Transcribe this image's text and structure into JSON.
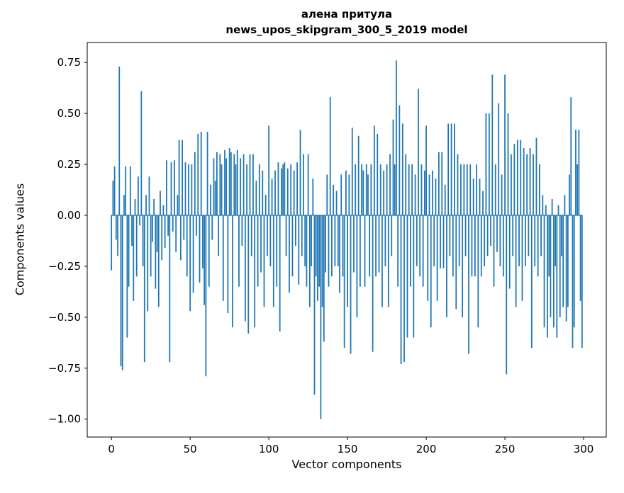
{
  "figure": {
    "background": "#ffffff"
  },
  "chart_data": {
    "type": "bar",
    "title": "алена притула",
    "subtitle": "news_upos_skipgram_300_5_2019 model",
    "xlabel": "Vector components",
    "ylabel": "Components values",
    "bar_color": "#1f77b4",
    "bar_width": 0.8,
    "n_components": 300,
    "xlim": [
      -15.4,
      314.4
    ],
    "ylim": [
      -1.088,
      0.848
    ],
    "grid": false,
    "legend": "none",
    "x_ticks": [
      0,
      50,
      100,
      150,
      200,
      250,
      300
    ],
    "x_tick_labels": [
      "0",
      "50",
      "100",
      "150",
      "200",
      "250",
      "300"
    ],
    "y_ticks": [
      0.75,
      0.5,
      0.25,
      0.0,
      -0.25,
      -0.5,
      -0.75,
      -1.0
    ],
    "y_tick_labels": [
      "0.75",
      "0.50",
      "0.25",
      "0.00",
      "−0.25",
      "−0.50",
      "−0.75",
      "−1.00"
    ],
    "values": [
      -0.27,
      0.17,
      0.24,
      -0.12,
      -0.2,
      0.73,
      -0.74,
      -0.76,
      0.1,
      0.24,
      -0.6,
      -0.35,
      0.24,
      -0.15,
      -0.42,
      0.08,
      -0.3,
      0.19,
      -0.05,
      0.61,
      -0.25,
      -0.72,
      0.1,
      -0.47,
      0.19,
      -0.3,
      -0.13,
      0.08,
      -0.36,
      -0.18,
      -0.45,
      0.12,
      -0.22,
      0.05,
      -0.16,
      0.27,
      -0.1,
      -0.72,
      0.26,
      -0.08,
      0.27,
      -0.18,
      0.1,
      0.37,
      -0.22,
      0.37,
      -0.12,
      0.26,
      -0.3,
      0.25,
      -0.47,
      0.25,
      -0.38,
      0.31,
      -0.1,
      0.4,
      -0.33,
      0.41,
      -0.26,
      -0.44,
      -0.79,
      0.41,
      -0.35,
      0.15,
      -0.12,
      0.28,
      0.17,
      0.31,
      -0.2,
      0.3,
      0.25,
      -0.42,
      0.32,
      0.28,
      -0.48,
      0.33,
      0.31,
      -0.55,
      0.3,
      0.25,
      0.32,
      -0.35,
      0.28,
      -0.15,
      0.3,
      -0.52,
      0.25,
      -0.58,
      0.3,
      -0.2,
      0.3,
      -0.55,
      0.17,
      -0.35,
      0.25,
      -0.28,
      0.22,
      -0.45,
      0.1,
      -0.2,
      0.44,
      -0.25,
      0.18,
      -0.45,
      0.22,
      -0.35,
      0.26,
      -0.57,
      0.23,
      0.25,
      0.26,
      -0.2,
      0.23,
      -0.38,
      0.25,
      -0.3,
      0.22,
      -0.15,
      0.26,
      -0.34,
      0.42,
      -0.2,
      0.3,
      -0.25,
      -0.35,
      0.3,
      -0.45,
      -0.25,
      0.18,
      -0.88,
      -0.3,
      -0.42,
      -0.35,
      -1.0,
      -0.45,
      -0.62,
      -0.28,
      0.2,
      -0.35,
      0.58,
      -0.3,
      0.15,
      -0.25,
      0.12,
      -0.25,
      -0.38,
      0.2,
      -0.3,
      -0.65,
      0.22,
      -0.45,
      0.2,
      -0.68,
      0.43,
      -0.28,
      0.25,
      -0.5,
      0.39,
      -0.35,
      0.25,
      0.22,
      -0.35,
      0.25,
      0.2,
      -0.3,
      0.25,
      -0.67,
      0.44,
      -0.3,
      0.4,
      -0.28,
      0.25,
      -0.45,
      0.22,
      -0.25,
      0.25,
      -0.45,
      0.3,
      -0.2,
      0.47,
      0.25,
      0.76,
      -0.35,
      0.54,
      -0.73,
      0.45,
      -0.72,
      0.3,
      -0.6,
      0.25,
      -0.35,
      0.25,
      -0.6,
      0.2,
      -0.25,
      0.62,
      -0.3,
      0.25,
      -0.35,
      0.22,
      0.44,
      -0.42,
      0.2,
      -0.55,
      0.22,
      -0.25,
      0.18,
      -0.42,
      0.31,
      -0.26,
      0.31,
      -0.26,
      0.15,
      -0.5,
      0.45,
      -0.2,
      0.45,
      -0.3,
      0.45,
      -0.46,
      0.3,
      -0.25,
      0.25,
      -0.5,
      0.25,
      -0.2,
      0.25,
      -0.68,
      0.25,
      -0.3,
      0.18,
      -0.3,
      0.25,
      -0.55,
      0.18,
      -0.3,
      0.12,
      -0.25,
      0.5,
      -0.2,
      0.5,
      -0.15,
      0.69,
      -0.35,
      0.25,
      -0.18,
      0.55,
      -0.25,
      0.2,
      -0.3,
      0.69,
      -0.78,
      0.5,
      -0.36,
      0.3,
      -0.2,
      0.35,
      -0.45,
      0.37,
      -0.25,
      0.37,
      -0.42,
      0.33,
      -0.25,
      0.3,
      -0.2,
      0.33,
      -0.65,
      0.3,
      -0.25,
      0.38,
      -0.3,
      0.25,
      -0.2,
      0.1,
      -0.55,
      0.05,
      -0.6,
      -0.3,
      -0.5,
      0.08,
      -0.55,
      -0.25,
      -0.6,
      0.05,
      -0.5,
      -0.2,
      -0.45,
      0.1,
      -0.52,
      -0.45,
      0.2,
      0.58,
      -0.65,
      -0.55,
      0.42,
      0.25,
      0.42,
      -0.42,
      -0.65
    ]
  }
}
